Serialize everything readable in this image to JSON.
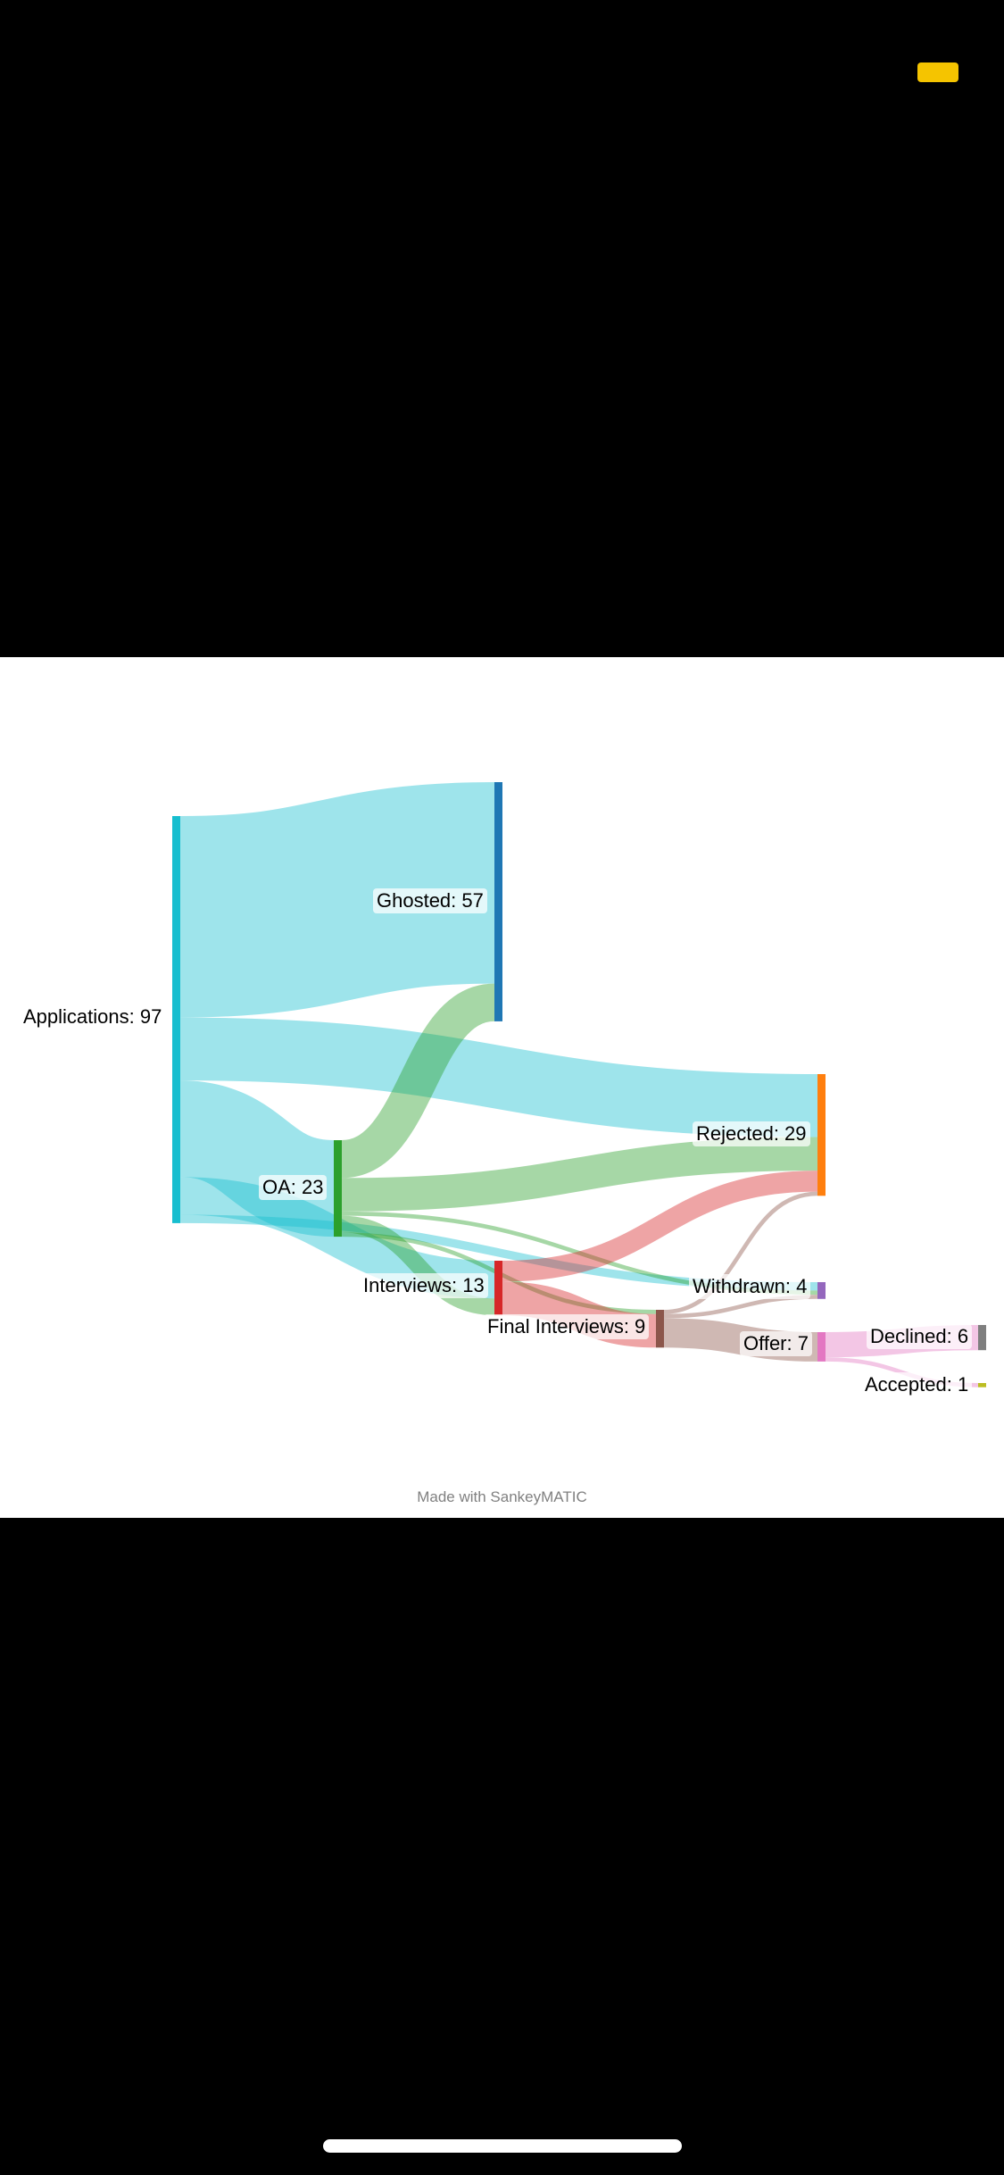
{
  "nodes": [
    {
      "id": "applications",
      "label": "Applications: 97",
      "color": "#17becf"
    },
    {
      "id": "ghosted",
      "label": "Ghosted: 57",
      "color": "#1f77b4"
    },
    {
      "id": "oa",
      "label": "OA: 23",
      "color": "#2ca02c"
    },
    {
      "id": "rejected",
      "label": "Rejected: 29",
      "color": "#ff7f0e"
    },
    {
      "id": "interviews",
      "label": "Interviews: 13",
      "color": "#d62728"
    },
    {
      "id": "withdrawn",
      "label": "Withdrawn: 4",
      "color": "#9467bd"
    },
    {
      "id": "final",
      "label": "Final Interviews: 9",
      "color": "#8c564b"
    },
    {
      "id": "offer",
      "label": "Offer: 7",
      "color": "#e377c2"
    },
    {
      "id": "declined",
      "label": "Declined: 6",
      "color": "#7f7f7f"
    },
    {
      "id": "accepted",
      "label": "Accepted: 1",
      "color": "#bcbd22"
    }
  ],
  "flows": [
    {
      "from": "applications",
      "to": "ghosted",
      "value": 48
    },
    {
      "from": "applications",
      "to": "rejected",
      "value": 15
    },
    {
      "from": "applications",
      "to": "oa",
      "value": 23
    },
    {
      "from": "applications",
      "to": "interviews",
      "value": 9
    },
    {
      "from": "applications",
      "to": "withdrawn",
      "value": 2
    },
    {
      "from": "oa",
      "to": "ghosted",
      "value": 9
    },
    {
      "from": "oa",
      "to": "rejected",
      "value": 8
    },
    {
      "from": "oa",
      "to": "withdrawn",
      "value": 1
    },
    {
      "from": "oa",
      "to": "interviews",
      "value": 4
    },
    {
      "from": "oa",
      "to": "final",
      "value": 1
    },
    {
      "from": "interviews",
      "to": "rejected",
      "value": 5
    },
    {
      "from": "interviews",
      "to": "final",
      "value": 8
    },
    {
      "from": "final",
      "to": "rejected",
      "value": 1
    },
    {
      "from": "final",
      "to": "withdrawn",
      "value": 1
    },
    {
      "from": "final",
      "to": "offer",
      "value": 7
    },
    {
      "from": "offer",
      "to": "declined",
      "value": 6
    },
    {
      "from": "offer",
      "to": "accepted",
      "value": 1
    }
  ],
  "credit": "Made with SankeyMATIC"
}
